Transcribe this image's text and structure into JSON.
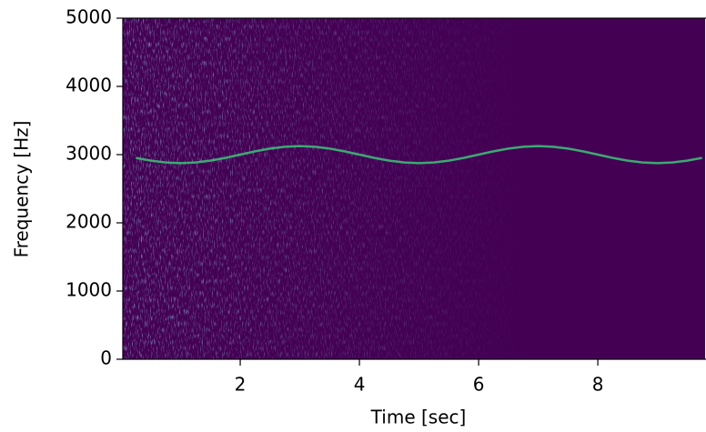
{
  "chart_data": {
    "type": "spectrogram",
    "xlabel": "Time [sec]",
    "ylabel": "Frequency [Hz]",
    "x": [
      0.25,
      0.5,
      0.75,
      1,
      1.25,
      1.5,
      1.75,
      2,
      2.25,
      2.5,
      2.75,
      3,
      3.25,
      3.5,
      3.75,
      4,
      4.25,
      4.5,
      4.75,
      5,
      5.25,
      5.5,
      5.75,
      6,
      6.25,
      6.5,
      6.75,
      7,
      7.25,
      7.5,
      7.75,
      8,
      8.25,
      8.5,
      8.75,
      9,
      9.25,
      9.5,
      9.75
    ],
    "series": [
      {
        "color": "#3cbb75",
        "values": [
          2952,
          2912,
          2885,
          2875,
          2885,
          2912,
          2952,
          3000,
          3048,
          3088,
          3115,
          3125,
          3115,
          3088,
          3048,
          3000,
          2952,
          2912,
          2885,
          2875,
          2885,
          2912,
          2952,
          3000,
          3048,
          3088,
          3115,
          3125,
          3115,
          3088,
          3048,
          3000,
          2952,
          2912,
          2885,
          2875,
          2885,
          2912,
          2952
        ]
      }
    ],
    "background_color": "#440154",
    "xlim": [
      0.03,
      9.8
    ],
    "xticks": [
      2,
      4,
      6,
      8
    ],
    "ylim": [
      0,
      5000
    ],
    "yticks": [
      0,
      1000,
      2000,
      3000,
      4000,
      5000
    ]
  }
}
